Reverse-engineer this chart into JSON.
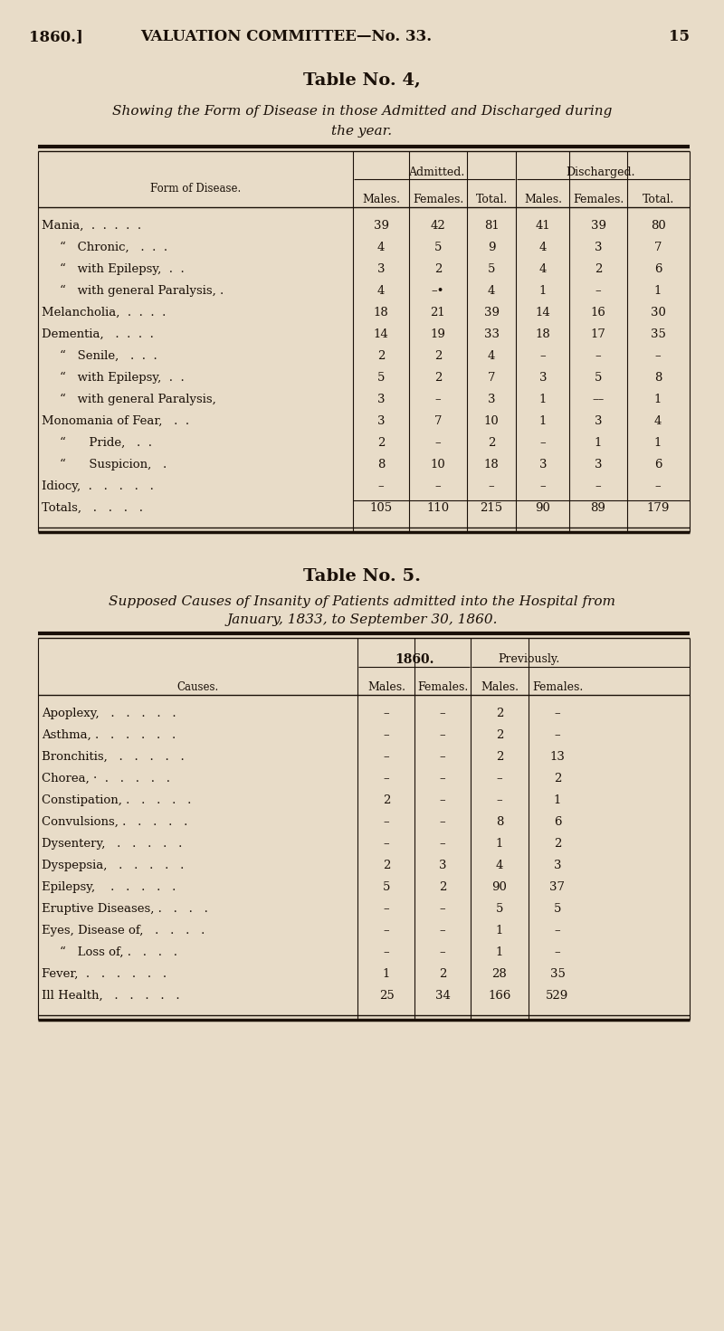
{
  "bg_color": "#e8dcc8",
  "text_color": "#1a1008",
  "t4_title": "Table No. 4,",
  "t4_sub1": "Showing the Form of Disease in those Admitted and Discharged during",
  "t4_sub2": "the year.",
  "t4_rows": [
    [
      "Mania,  .  .  .  .  .",
      "39",
      "42",
      "81",
      "41",
      "39",
      "80"
    ],
    [
      "“   Chronic,   .  .  .",
      "4",
      "5",
      "9",
      "4",
      "3",
      "7"
    ],
    [
      "“   with Epilepsy,  .  .",
      "3",
      "2",
      "5",
      "4",
      "2",
      "6"
    ],
    [
      "“   with general Paralysis, .",
      "4",
      "–•",
      "4",
      "1",
      "–",
      "1"
    ],
    [
      "Melancholia,  .  .  .  .",
      "18",
      "21",
      "39",
      "14",
      "16",
      "30"
    ],
    [
      "Dementia,   .  .  .  .",
      "14",
      "19",
      "33",
      "18",
      "17",
      "35"
    ],
    [
      "“   Senile,   .  .  .",
      "2",
      "2",
      "4",
      "–",
      "–",
      "–"
    ],
    [
      "“   with Epilepsy,  .  .",
      "5",
      "2",
      "7",
      "3",
      "5",
      "8"
    ],
    [
      "“   with general Paralysis,",
      "3",
      "–",
      "3",
      "1",
      "––",
      "1"
    ],
    [
      "Monomania of Fear,   .  .",
      "3",
      "7",
      "10",
      "1",
      "3",
      "4"
    ],
    [
      "“      Pride,   .  .",
      "2",
      "–",
      "2",
      "–",
      "1",
      "1"
    ],
    [
      "“      Suspicion,   .",
      "8",
      "10",
      "18",
      "3",
      "3",
      "6"
    ],
    [
      "Idiocy,  .   .   .   .   .",
      "–",
      "–",
      "–",
      "–",
      "–",
      "–"
    ],
    [
      "Totals,   .   .   .   .",
      "105",
      "110",
      "215",
      "90",
      "89",
      "179"
    ]
  ],
  "t5_title": "Table No. 5.",
  "t5_sub1": "Supposed Causes of Insanity of Patients admitted into the Hospital from",
  "t5_sub2": "January, 1833, to September 30, 1860.",
  "t5_rows": [
    [
      "Apoplexy,   .   .   .   .   .",
      "–",
      "–",
      "2",
      "–"
    ],
    [
      "Asthma, .   .   .   .   .   .",
      "–",
      "–",
      "2",
      "–"
    ],
    [
      "Bronchitis,   .   .   .   .   .",
      "–",
      "–",
      "2",
      "13"
    ],
    [
      "Chorea, ·  .   .   .   .   .",
      "–",
      "–",
      "–",
      "2"
    ],
    [
      "Constipation, .   .   .   .   .",
      "2",
      "–",
      "–",
      "1"
    ],
    [
      "Convulsions, .   .   .   .   .",
      "–",
      "–",
      "8",
      "6"
    ],
    [
      "Dysentery,   .   .   .   .   .",
      "–",
      "–",
      "1",
      "2"
    ],
    [
      "Dyspepsia,   .   .   .   .   .",
      "2",
      "3",
      "4",
      "3"
    ],
    [
      "Epilepsy,    .   .   .   .   .",
      "5",
      "2",
      "90",
      "37"
    ],
    [
      "Eruptive Diseases, .   .   .   .",
      "–",
      "–",
      "5",
      "5"
    ],
    [
      "Eyes, Disease of,   .   .   .   .",
      "–",
      "–",
      "1",
      "–"
    ],
    [
      "“   Loss of, .   .   .   .",
      "–",
      "–",
      "1",
      "–"
    ],
    [
      "Fever,  .   .   .   .   .   .",
      "1",
      "2",
      "28",
      "35"
    ],
    [
      "Ill Health,   .   .   .   .   .",
      "25",
      "34",
      "166",
      "529"
    ]
  ]
}
